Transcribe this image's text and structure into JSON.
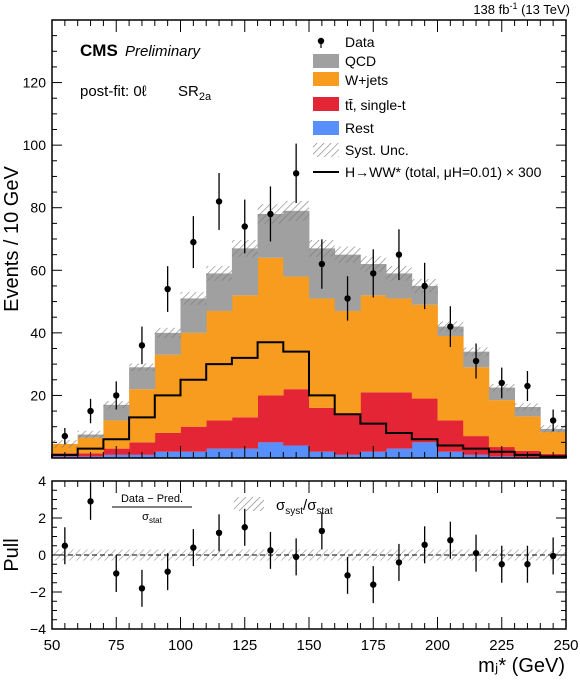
{
  "header": {
    "lumi": "138 fb",
    "lumi_sup": "-1",
    "lumi_rest": " (13 TeV)"
  },
  "labels": {
    "cms": "CMS",
    "preliminary": "Preliminary",
    "postfit": "post-fit: 0ℓ",
    "region": "SR",
    "region_sub": "2a"
  },
  "chart_data": [
    {
      "type": "bar",
      "stacked": true,
      "ylabel": "Events / 10 GeV",
      "ylim": [
        0,
        140
      ],
      "yticks": [
        20,
        40,
        60,
        80,
        100,
        120
      ],
      "xlim": [
        50,
        250
      ],
      "bin_edges": [
        50,
        60,
        70,
        80,
        90,
        100,
        110,
        120,
        130,
        140,
        150,
        160,
        170,
        180,
        190,
        200,
        210,
        220,
        230,
        240,
        250
      ],
      "series": [
        {
          "name": "Rest",
          "color": "#5790fc",
          "values": [
            0.5,
            0.5,
            1,
            1,
            2,
            2,
            3,
            3,
            5,
            4,
            2,
            1,
            2,
            3,
            5,
            2,
            1,
            0.5,
            0.3,
            0.3
          ]
        },
        {
          "name": "tt̄, single-t",
          "color": "#e42536",
          "values": [
            1,
            1,
            2,
            4,
            6,
            8,
            9,
            10,
            15,
            18,
            14,
            13,
            19,
            18,
            14,
            10,
            6,
            3,
            2,
            1
          ]
        },
        {
          "name": "W+jets",
          "color": "#f89c20",
          "values": [
            3,
            5,
            9,
            17,
            25,
            30,
            35,
            39,
            44,
            36,
            35,
            33,
            31,
            30,
            30,
            27,
            22,
            15,
            11,
            7
          ]
        },
        {
          "name": "QCD",
          "color": "#a0a0a0",
          "values": [
            0,
            1,
            5,
            7,
            7,
            11,
            12,
            15,
            14,
            21,
            16,
            18,
            10,
            8,
            6,
            3,
            5,
            4,
            3,
            1
          ]
        }
      ],
      "total_mc": [
        4.5,
        7.5,
        17,
        29,
        40,
        51,
        59,
        67,
        78,
        79,
        67,
        65,
        62,
        59,
        55,
        42,
        34,
        22.5,
        16.3,
        9.3
      ],
      "signal": {
        "name": "H→WW* (total, μH=0.01) × 300",
        "values": [
          1,
          3,
          6,
          13,
          20,
          25,
          30,
          32,
          37,
          34,
          20,
          14,
          11,
          8,
          6,
          4,
          3,
          2,
          1,
          0.5
        ]
      },
      "data": {
        "name": "Data",
        "x": [
          55,
          65,
          75,
          85,
          95,
          105,
          115,
          125,
          135,
          145,
          155,
          165,
          175,
          185,
          195,
          205,
          215,
          225,
          235,
          245
        ],
        "y": [
          7,
          15,
          20,
          36,
          54,
          69,
          82,
          74,
          78,
          91,
          62,
          51,
          59,
          65,
          55,
          42,
          31,
          24,
          23,
          12
        ],
        "err": [
          2.6,
          3.9,
          4.5,
          6,
          7.3,
          8.3,
          9.1,
          8.6,
          8.8,
          9.5,
          7.9,
          7.1,
          7.7,
          8.1,
          7.4,
          6.5,
          5.6,
          4.9,
          4.8,
          3.5
        ]
      },
      "legend": [
        "Data",
        "QCD",
        "W+jets",
        "tt̄, single-t",
        "Rest",
        "Syst. Unc.",
        "H→WW* (total, μH=0.01) × 300"
      ],
      "legend_placement": "top-right",
      "syst_label": "Syst. Unc."
    },
    {
      "type": "scatter",
      "ylabel": "Pull",
      "xlabel": "mⱼ* (GeV)",
      "ylim": [
        -4,
        4
      ],
      "yticks": [
        -4,
        -2,
        0,
        2,
        4
      ],
      "xticks": [
        50,
        75,
        100,
        125,
        150,
        175,
        200,
        225,
        250
      ],
      "x": [
        55,
        65,
        75,
        85,
        95,
        105,
        115,
        125,
        135,
        145,
        155,
        165,
        175,
        185,
        195,
        205,
        215,
        225,
        235,
        245
      ],
      "y": [
        0.5,
        2.9,
        -1.0,
        -1.8,
        -0.9,
        0.4,
        1.2,
        1.5,
        0.25,
        -0.1,
        1.3,
        -1.1,
        -1.6,
        -0.4,
        0.55,
        0.8,
        0.1,
        -0.5,
        -0.5,
        -0.05
      ],
      "err": [
        1,
        1,
        1,
        1,
        1,
        1,
        1,
        1,
        1,
        1,
        1,
        1,
        1,
        1,
        1,
        1,
        1,
        1,
        1,
        1
      ],
      "pull_num": "Data − Pred.",
      "pull_den": "σ",
      "pull_den_sub": "stat",
      "ratio_label_1": "σ",
      "ratio_sub_1": "syst",
      "ratio_label_2": "/σ",
      "ratio_sub_2": "stat"
    }
  ]
}
